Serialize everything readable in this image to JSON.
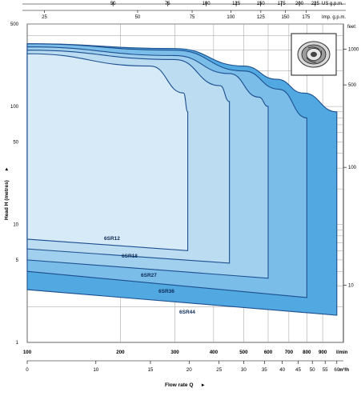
{
  "chart_data": {
    "type": "area",
    "xlabel": "Flow rate Q",
    "ylabel": "Head H (metres)",
    "top_axis": {
      "us_gpm_ticks": [
        "50",
        "75",
        "100",
        "125",
        "150",
        "175",
        "200",
        "225"
      ],
      "us_gpm_unit": "US g.p.m.",
      "imp_gpm_ticks": [
        "25",
        "50",
        "75",
        "100",
        "125",
        "150",
        "175"
      ],
      "imp_gpm_unit": "Imp. g.p.m."
    },
    "x_lpm_ticks": [
      "100",
      "200",
      "300",
      "400",
      "500",
      "600",
      "700",
      "800",
      "900"
    ],
    "x_lpm_unit": "l/min",
    "x_m3h_ticks": [
      "0",
      "10",
      "15",
      "20",
      "25",
      "30",
      "35",
      "40",
      "45",
      "50",
      "55",
      "60"
    ],
    "x_m3h_unit": "m³/h",
    "y_ticks_metres": [
      "500",
      "100",
      "50",
      "10",
      "5",
      "1"
    ],
    "right_axis": {
      "unit": "feet",
      "ticks": [
        "1000",
        "500",
        "100",
        "10"
      ]
    },
    "x_scale": "log",
    "y_scale": "log",
    "xlim_lpm": [
      100,
      1050
    ],
    "ylim_metres": [
      1,
      500
    ],
    "grid": true,
    "series": [
      {
        "name": "6SR44",
        "color": "#52a8e0",
        "top_start": 340,
        "top_points": [
          [
            100,
            340
          ],
          [
            300,
            310
          ],
          [
            500,
            220
          ],
          [
            640,
            170
          ],
          [
            780,
            130
          ],
          [
            1000,
            90
          ]
        ],
        "max_flow_lpm": 1000,
        "max_head_top": 90,
        "max_head_bottom": 1.7,
        "bottom_start": 2.8
      },
      {
        "name": "6SR36",
        "color": "#7bbde9",
        "top_start": 340,
        "top_points": [
          [
            100,
            340
          ],
          [
            300,
            300
          ],
          [
            500,
            200
          ],
          [
            650,
            140
          ],
          [
            800,
            80
          ]
        ],
        "max_flow_lpm": 800,
        "max_head_top": 80,
        "max_head_bottom": 2.4,
        "bottom_start": 4.0
      },
      {
        "name": "6SR27",
        "color": "#a1d0ef",
        "top_start": 320,
        "top_points": [
          [
            100,
            320
          ],
          [
            300,
            270
          ],
          [
            450,
            190
          ],
          [
            560,
            120
          ],
          [
            600,
            100
          ]
        ],
        "max_flow_lpm": 600,
        "max_head_top": 100,
        "max_head_bottom": 3.5,
        "bottom_start": 5.0
      },
      {
        "name": "6SR18",
        "color": "#bcdcf2",
        "top_start": 300,
        "top_points": [
          [
            100,
            300
          ],
          [
            300,
            250
          ],
          [
            420,
            150
          ],
          [
            450,
            110
          ]
        ],
        "max_flow_lpm": 450,
        "max_head_top": 110,
        "max_head_bottom": 4.7,
        "bottom_start": 6.2
      },
      {
        "name": "6SR12",
        "color": "#d6eaf8",
        "top_start": 280,
        "top_points": [
          [
            100,
            280
          ],
          [
            250,
            220
          ],
          [
            320,
            130
          ],
          [
            330,
            90
          ]
        ],
        "max_flow_lpm": 330,
        "max_head_top": 90,
        "max_head_bottom": 6.0,
        "bottom_start": 7.5
      }
    ]
  }
}
